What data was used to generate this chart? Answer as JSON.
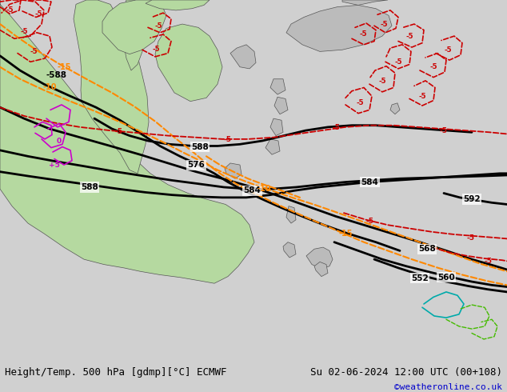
{
  "title_left": "Height/Temp. 500 hPa [gdmp][°C] ECMWF",
  "title_right": "Su 02-06-2024 12:00 UTC (00+108)",
  "watermark": "©weatheronline.co.uk",
  "bg_color": "#d0d0d0",
  "land_green_color": "#b5d9a0",
  "land_gray_color": "#bbbbbb",
  "figsize": [
    6.34,
    4.9
  ],
  "dpi": 100,
  "title_fontsize": 9,
  "watermark_color": "#0000cc",
  "watermark_fontsize": 8,
  "orange_color": "#ff8800",
  "red_color": "#cc0000",
  "black_color": "#000000",
  "magenta_color": "#cc00cc",
  "cyan_color": "#00aaaa",
  "green_line_color": "#44bb00"
}
